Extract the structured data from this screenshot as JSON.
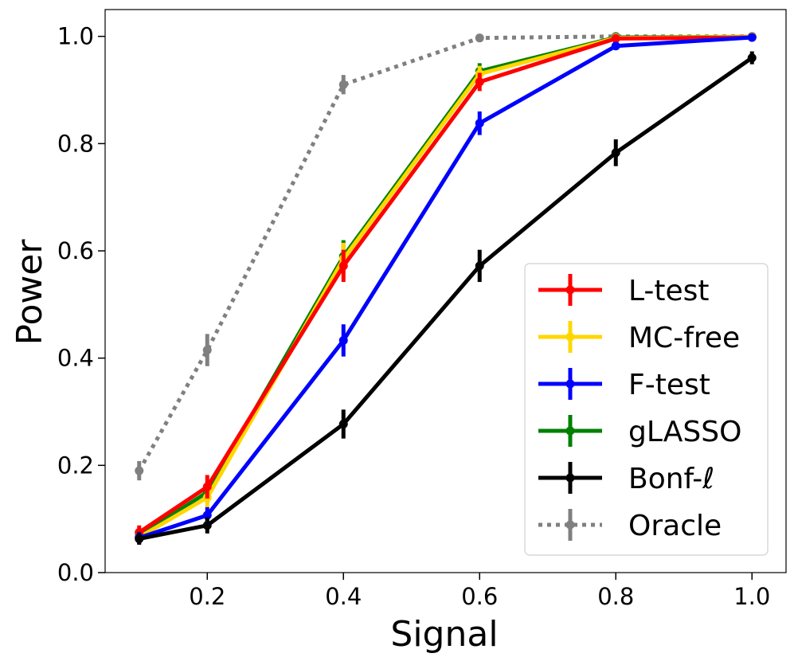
{
  "chart_data": {
    "type": "line",
    "title": "",
    "xlabel": "Signal",
    "ylabel": "Power",
    "xlim": [
      0.05,
      1.05
    ],
    "ylim": [
      0.0,
      1.05
    ],
    "xticks": [
      0.2,
      0.4,
      0.6,
      0.8,
      1.0
    ],
    "xtick_labels": [
      "0.2",
      "0.4",
      "0.6",
      "0.8",
      "1.0"
    ],
    "yticks": [
      0.0,
      0.2,
      0.4,
      0.6,
      0.8,
      1.0
    ],
    "ytick_labels": [
      "0.0",
      "0.2",
      "0.4",
      "0.6",
      "0.8",
      "1.0"
    ],
    "grid": false,
    "legend_position": "lower-right",
    "x": [
      0.1,
      0.2,
      0.4,
      0.6,
      0.8,
      1.0
    ],
    "series": [
      {
        "name": "Oracle",
        "color": "#808080",
        "style": "dotted",
        "values": [
          0.19,
          0.415,
          0.91,
          0.997,
          1.0,
          1.0
        ],
        "errors": [
          0.018,
          0.03,
          0.018,
          0.004,
          0.002,
          0.002
        ]
      },
      {
        "name": "gLASSO",
        "color": "#008000",
        "style": "solid",
        "values": [
          0.068,
          0.15,
          0.59,
          0.935,
          0.998,
          0.999
        ],
        "errors": [
          0.012,
          0.02,
          0.03,
          0.015,
          0.003,
          0.002
        ]
      },
      {
        "name": "MC-free",
        "color": "#FFD700",
        "style": "solid",
        "values": [
          0.066,
          0.14,
          0.585,
          0.93,
          0.997,
          0.999
        ],
        "errors": [
          0.012,
          0.02,
          0.03,
          0.015,
          0.003,
          0.002
        ]
      },
      {
        "name": "L-test",
        "color": "#FF0000",
        "style": "solid",
        "values": [
          0.075,
          0.16,
          0.572,
          0.915,
          0.996,
          0.998
        ],
        "errors": [
          0.013,
          0.022,
          0.03,
          0.017,
          0.004,
          0.003
        ]
      },
      {
        "name": "F-test",
        "color": "#0000FF",
        "style": "solid",
        "values": [
          0.065,
          0.107,
          0.433,
          0.838,
          0.982,
          0.998
        ],
        "errors": [
          0.011,
          0.015,
          0.03,
          0.022,
          0.006,
          0.003
        ]
      },
      {
        "name": "Bonf-ℓ",
        "color": "#000000",
        "style": "solid",
        "values": [
          0.063,
          0.088,
          0.277,
          0.572,
          0.783,
          0.96
        ],
        "errors": [
          0.011,
          0.015,
          0.027,
          0.03,
          0.025,
          0.012
        ]
      }
    ],
    "legend_order": [
      "L-test",
      "MC-free",
      "F-test",
      "gLASSO",
      "Bonf-ℓ",
      "Oracle"
    ]
  }
}
